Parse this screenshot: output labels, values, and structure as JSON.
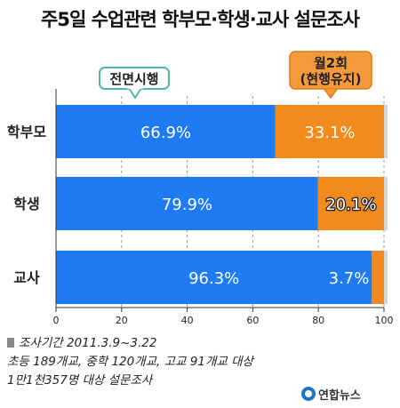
{
  "title": "주5일 수업관련 학부모·학생·교사 설문조사",
  "chart_data": {
    "type": "bar",
    "orientation": "horizontal",
    "stacked": true,
    "categories": [
      "학부모",
      "학생",
      "교사"
    ],
    "series": [
      {
        "name": "전면시행",
        "values": [
          66.9,
          79.9,
          96.3
        ],
        "labels": [
          "66.9%",
          "79.9%",
          "96.3%"
        ]
      },
      {
        "name": "월2회 (현행유지)",
        "values": [
          33.1,
          20.1,
          3.7
        ],
        "labels": [
          "33.1%",
          "20.1%",
          "3.7%"
        ]
      }
    ],
    "xlim": [
      0,
      100
    ],
    "xticks": [
      "0",
      "20",
      "40",
      "60",
      "80",
      "100"
    ],
    "grid": true
  },
  "callouts": {
    "full": "전면시행",
    "partial_line1": "월2회",
    "partial_line2": "(현행유지)"
  },
  "footnote": {
    "line1": "조사기간 2011.3.9~3.22",
    "line2": "초등 189개교, 중학 120개교, 고교 91개교 대상",
    "line3": "1만1천357명 대상 설문조사"
  },
  "logo": {
    "text": "연합뉴스"
  },
  "colors": {
    "series1": "#1f7bf4",
    "series2": "#f28a1e",
    "grid": "#9a9a9a",
    "axis": "#333333",
    "callout_full_border": "#4fb6a0",
    "callout_partial_fill": "#f59a3a"
  }
}
